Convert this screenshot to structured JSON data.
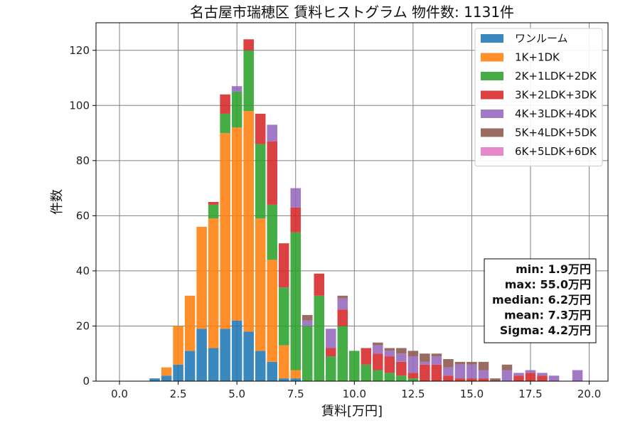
{
  "chart_data": {
    "type": "bar",
    "stacked": true,
    "title": "名古屋市瑞穂区 賃料ヒストグラム  物件数: 1131件",
    "xlabel": "賃料[万円]",
    "ylabel": "件数",
    "xlim": [
      -1.0,
      20.8
    ],
    "ylim": [
      0,
      130
    ],
    "xticks": [
      "0.0",
      "2.5",
      "5.0",
      "7.5",
      "10.0",
      "12.5",
      "15.0",
      "17.5",
      "20.0"
    ],
    "yticks": [
      "0",
      "20",
      "40",
      "60",
      "80",
      "100",
      "120"
    ],
    "grid": true,
    "legend_position": "top-right",
    "bin_width": 0.5,
    "x": [
      1.5,
      2.0,
      2.5,
      3.0,
      3.5,
      4.0,
      4.5,
      5.0,
      5.5,
      6.0,
      6.5,
      7.0,
      7.5,
      8.0,
      8.5,
      9.0,
      9.5,
      10.0,
      10.5,
      11.0,
      11.5,
      12.0,
      12.5,
      13.0,
      13.5,
      14.0,
      14.5,
      15.0,
      15.5,
      16.0,
      16.5,
      17.0,
      17.5,
      18.0,
      18.5,
      19.5
    ],
    "series": [
      {
        "name": "ワンルーム",
        "color": "#1f77b4",
        "values": [
          1,
          2,
          6,
          11,
          19,
          12,
          19,
          22,
          18,
          11,
          7,
          1,
          1,
          0,
          0,
          0,
          0,
          0,
          0,
          0,
          0,
          0,
          0,
          0,
          0,
          0,
          0,
          0,
          0,
          0,
          0,
          0,
          0,
          0,
          0,
          0
        ]
      },
      {
        "name": "1K+1DK",
        "color": "#ff7f0e",
        "values": [
          0,
          3,
          14,
          20,
          37,
          47,
          71,
          70,
          80,
          48,
          37,
          12,
          3,
          0,
          0,
          0,
          0,
          0,
          0,
          0,
          0,
          0,
          0,
          0,
          0,
          0,
          0,
          0,
          0,
          0,
          0,
          0,
          0,
          0,
          0,
          0
        ]
      },
      {
        "name": "2K+1LDK+2DK",
        "color": "#2ca02c",
        "values": [
          0,
          0,
          0,
          0,
          0,
          5,
          7,
          13,
          22,
          27,
          20,
          21,
          50,
          20,
          31,
          9,
          20,
          11,
          6,
          4,
          3,
          2,
          1,
          0,
          0,
          0,
          0,
          0,
          0,
          0,
          0,
          0,
          0,
          0,
          0,
          0
        ]
      },
      {
        "name": "3K+2LDK+3DK",
        "color": "#d62728",
        "values": [
          0,
          0,
          0,
          0,
          0,
          1,
          7,
          0,
          4,
          11,
          23,
          16,
          9,
          0,
          8,
          3,
          6,
          0,
          6,
          6,
          6,
          5,
          2,
          6,
          6,
          2,
          1,
          1,
          1,
          0,
          0,
          2,
          3,
          2,
          0,
          0
        ]
      },
      {
        "name": "4K+3LDK+4DK",
        "color": "#9467bd",
        "values": [
          0,
          0,
          0,
          0,
          0,
          0,
          0,
          2,
          0,
          0,
          6,
          0,
          7,
          2,
          0,
          7,
          4,
          0,
          0,
          3,
          2,
          3,
          6,
          1,
          3,
          3,
          5,
          5,
          3,
          0,
          4,
          1,
          1,
          1,
          2,
          4
        ]
      },
      {
        "name": "5K+4LDK+5DK",
        "color": "#8c564b",
        "values": [
          0,
          0,
          0,
          0,
          0,
          0,
          0,
          0,
          0,
          0,
          0,
          0,
          0,
          2,
          0,
          0,
          1,
          0,
          0,
          1,
          1,
          2,
          2,
          3,
          1,
          3,
          1,
          1,
          3,
          1,
          2,
          0,
          0,
          0,
          0,
          0
        ]
      },
      {
        "name": "6K+5LDK+6DK",
        "color": "#e377c2",
        "values": [
          0,
          0,
          0,
          0,
          0,
          0,
          0,
          0,
          0,
          0,
          0,
          0,
          0,
          0,
          0,
          0,
          0,
          0,
          0,
          0,
          0,
          0,
          0,
          0,
          0,
          0,
          0,
          0,
          0,
          0,
          0,
          0,
          0,
          0,
          0,
          0
        ]
      }
    ],
    "stats_box": [
      "min: 1.9万円",
      "max: 55.0万円",
      "median: 6.2万円",
      "mean: 7.3万円",
      "Sigma: 4.2万円"
    ],
    "stats_box_position": "right"
  }
}
